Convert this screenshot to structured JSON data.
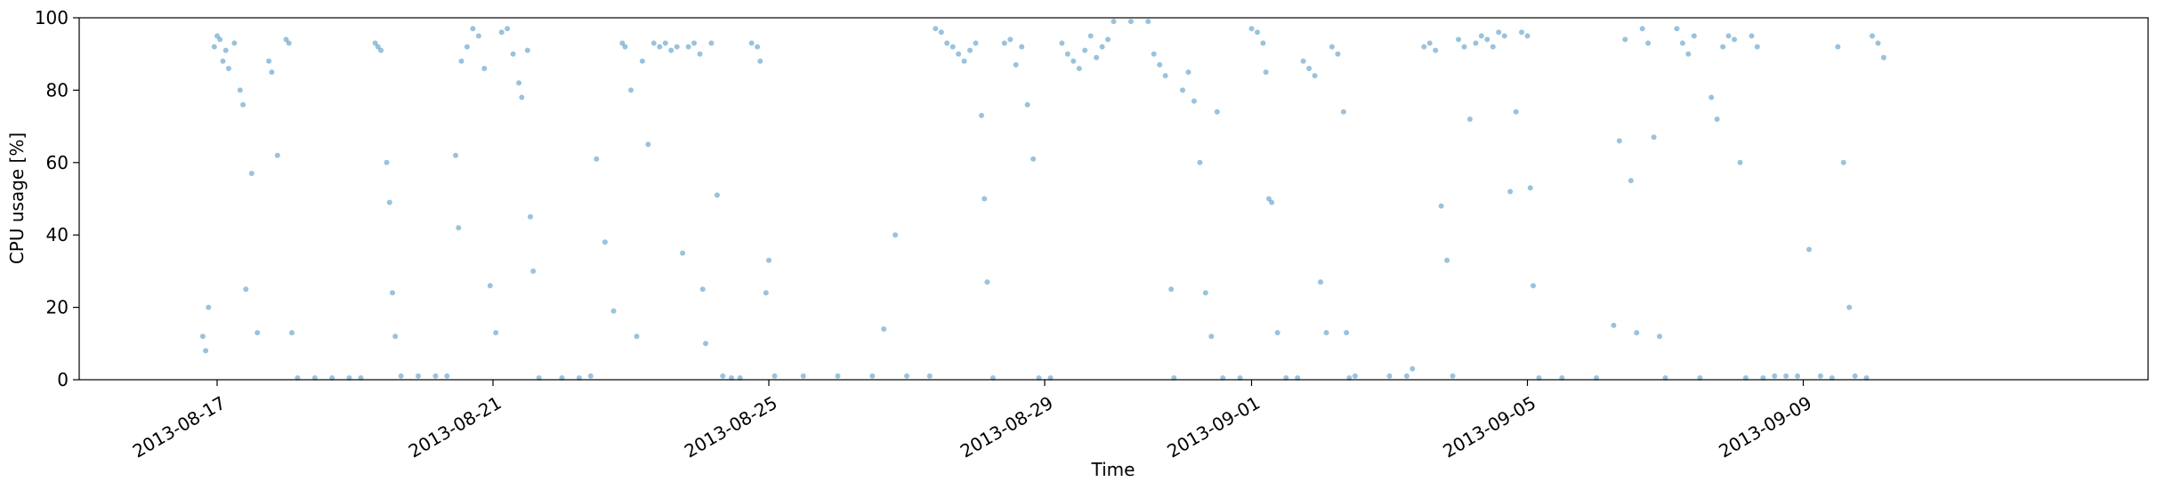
{
  "chart_data": {
    "type": "scatter",
    "xlabel": "Time",
    "ylabel": "CPU usage [%]",
    "ylim": [
      0,
      100
    ],
    "yticks": [
      0,
      20,
      40,
      60,
      80,
      100
    ],
    "xlim": [
      "2013-08-15",
      "2013-09-14"
    ],
    "xticks": [
      "2013-08-17",
      "2013-08-21",
      "2013-08-25",
      "2013-08-29",
      "2013-09-01",
      "2013-09-05",
      "2013-09-09"
    ],
    "grid": false,
    "marker_color": "#1f77b4",
    "marker_alpha": 0.45,
    "series": [
      {
        "values_description_free": true,
        "points": [
          [
            "2013-08-16T19:00",
            12
          ],
          [
            "2013-08-16T20:00",
            8
          ],
          [
            "2013-08-16T21:00",
            20
          ],
          [
            "2013-08-16T23:00",
            92
          ],
          [
            "2013-08-17T00:00",
            95
          ],
          [
            "2013-08-17T01:00",
            94
          ],
          [
            "2013-08-17T02:00",
            88
          ],
          [
            "2013-08-17T03:00",
            91
          ],
          [
            "2013-08-17T04:00",
            86
          ],
          [
            "2013-08-17T06:00",
            93
          ],
          [
            "2013-08-17T08:00",
            80
          ],
          [
            "2013-08-17T09:00",
            76
          ],
          [
            "2013-08-17T10:00",
            25
          ],
          [
            "2013-08-17T12:00",
            57
          ],
          [
            "2013-08-17T14:00",
            13
          ],
          [
            "2013-08-17T18:00",
            88
          ],
          [
            "2013-08-17T19:00",
            85
          ],
          [
            "2013-08-17T21:00",
            62
          ],
          [
            "2013-08-18T00:00",
            94
          ],
          [
            "2013-08-18T01:00",
            93
          ],
          [
            "2013-08-18T02:00",
            13
          ],
          [
            "2013-08-18T04:00",
            0.5
          ],
          [
            "2013-08-18T10:00",
            0.5
          ],
          [
            "2013-08-18T16:00",
            0.5
          ],
          [
            "2013-08-18T22:00",
            0.5
          ],
          [
            "2013-08-19T02:00",
            0.5
          ],
          [
            "2013-08-19T07:00",
            93
          ],
          [
            "2013-08-19T08:00",
            92
          ],
          [
            "2013-08-19T09:00",
            91
          ],
          [
            "2013-08-19T11:00",
            60
          ],
          [
            "2013-08-19T12:00",
            49
          ],
          [
            "2013-08-19T13:00",
            24
          ],
          [
            "2013-08-19T14:00",
            12
          ],
          [
            "2013-08-19T16:00",
            1
          ],
          [
            "2013-08-19T22:00",
            1
          ],
          [
            "2013-08-20T04:00",
            1
          ],
          [
            "2013-08-20T08:00",
            1
          ],
          [
            "2013-08-20T11:00",
            62
          ],
          [
            "2013-08-20T12:00",
            42
          ],
          [
            "2013-08-20T13:00",
            88
          ],
          [
            "2013-08-20T15:00",
            92
          ],
          [
            "2013-08-20T17:00",
            97
          ],
          [
            "2013-08-20T19:00",
            95
          ],
          [
            "2013-08-20T21:00",
            86
          ],
          [
            "2013-08-20T23:00",
            26
          ],
          [
            "2013-08-21T01:00",
            13
          ],
          [
            "2013-08-21T03:00",
            96
          ],
          [
            "2013-08-21T05:00",
            97
          ],
          [
            "2013-08-21T07:00",
            90
          ],
          [
            "2013-08-21T09:00",
            82
          ],
          [
            "2013-08-21T10:00",
            78
          ],
          [
            "2013-08-21T12:00",
            91
          ],
          [
            "2013-08-21T13:00",
            45
          ],
          [
            "2013-08-21T14:00",
            30
          ],
          [
            "2013-08-21T16:00",
            0.5
          ],
          [
            "2013-08-22T00:00",
            0.5
          ],
          [
            "2013-08-22T06:00",
            0.5
          ],
          [
            "2013-08-22T10:00",
            1
          ],
          [
            "2013-08-22T12:00",
            61
          ],
          [
            "2013-08-22T15:00",
            38
          ],
          [
            "2013-08-22T18:00",
            19
          ],
          [
            "2013-08-22T21:00",
            93
          ],
          [
            "2013-08-22T22:00",
            92
          ],
          [
            "2013-08-23T00:00",
            80
          ],
          [
            "2013-08-23T02:00",
            12
          ],
          [
            "2013-08-23T04:00",
            88
          ],
          [
            "2013-08-23T06:00",
            65
          ],
          [
            "2013-08-23T08:00",
            93
          ],
          [
            "2013-08-23T10:00",
            92
          ],
          [
            "2013-08-23T12:00",
            93
          ],
          [
            "2013-08-23T14:00",
            91
          ],
          [
            "2013-08-23T16:00",
            92
          ],
          [
            "2013-08-23T18:00",
            35
          ],
          [
            "2013-08-23T20:00",
            92
          ],
          [
            "2013-08-23T22:00",
            93
          ],
          [
            "2013-08-24T00:00",
            90
          ],
          [
            "2013-08-24T01:00",
            25
          ],
          [
            "2013-08-24T02:00",
            10
          ],
          [
            "2013-08-24T04:00",
            93
          ],
          [
            "2013-08-24T06:00",
            51
          ],
          [
            "2013-08-24T08:00",
            1
          ],
          [
            "2013-08-24T11:00",
            0.5
          ],
          [
            "2013-08-24T14:00",
            0.5
          ],
          [
            "2013-08-24T18:00",
            93
          ],
          [
            "2013-08-24T20:00",
            92
          ],
          [
            "2013-08-24T21:00",
            88
          ],
          [
            "2013-08-24T23:00",
            24
          ],
          [
            "2013-08-25T00:00",
            33
          ],
          [
            "2013-08-25T02:00",
            1
          ],
          [
            "2013-08-25T12:00",
            1
          ],
          [
            "2013-08-26T00:00",
            1
          ],
          [
            "2013-08-26T12:00",
            1
          ],
          [
            "2013-08-27T00:00",
            1
          ],
          [
            "2013-08-27T08:00",
            1
          ],
          [
            "2013-08-26T16:00",
            14
          ],
          [
            "2013-08-26T20:00",
            40
          ],
          [
            "2013-08-27T10:00",
            97
          ],
          [
            "2013-08-27T12:00",
            96
          ],
          [
            "2013-08-27T14:00",
            93
          ],
          [
            "2013-08-27T16:00",
            92
          ],
          [
            "2013-08-27T18:00",
            90
          ],
          [
            "2013-08-27T20:00",
            88
          ],
          [
            "2013-08-27T22:00",
            91
          ],
          [
            "2013-08-28T00:00",
            93
          ],
          [
            "2013-08-28T02:00",
            73
          ],
          [
            "2013-08-28T03:00",
            50
          ],
          [
            "2013-08-28T04:00",
            27
          ],
          [
            "2013-08-28T06:00",
            0.5
          ],
          [
            "2013-08-28T10:00",
            93
          ],
          [
            "2013-08-28T12:00",
            94
          ],
          [
            "2013-08-28T14:00",
            87
          ],
          [
            "2013-08-28T16:00",
            92
          ],
          [
            "2013-08-28T18:00",
            76
          ],
          [
            "2013-08-28T20:00",
            61
          ],
          [
            "2013-08-28T22:00",
            0.5
          ],
          [
            "2013-08-29T02:00",
            0.5
          ],
          [
            "2013-08-29T06:00",
            93
          ],
          [
            "2013-08-29T08:00",
            90
          ],
          [
            "2013-08-29T10:00",
            88
          ],
          [
            "2013-08-29T12:00",
            86
          ],
          [
            "2013-08-29T14:00",
            91
          ],
          [
            "2013-08-29T16:00",
            95
          ],
          [
            "2013-08-29T18:00",
            89
          ],
          [
            "2013-08-29T20:00",
            92
          ],
          [
            "2013-08-29T22:00",
            94
          ],
          [
            "2013-08-30T00:00",
            99
          ],
          [
            "2013-08-30T06:00",
            99
          ],
          [
            "2013-08-30T12:00",
            99
          ],
          [
            "2013-08-30T14:00",
            90
          ],
          [
            "2013-08-30T16:00",
            87
          ],
          [
            "2013-08-30T18:00",
            84
          ],
          [
            "2013-08-30T20:00",
            25
          ],
          [
            "2013-08-30T21:00",
            0.5
          ],
          [
            "2013-08-31T00:00",
            80
          ],
          [
            "2013-08-31T02:00",
            85
          ],
          [
            "2013-08-31T04:00",
            77
          ],
          [
            "2013-08-31T06:00",
            60
          ],
          [
            "2013-08-31T08:00",
            24
          ],
          [
            "2013-08-31T10:00",
            12
          ],
          [
            "2013-08-31T12:00",
            74
          ],
          [
            "2013-08-31T14:00",
            0.5
          ],
          [
            "2013-08-31T20:00",
            0.5
          ],
          [
            "2013-09-01T00:00",
            97
          ],
          [
            "2013-09-01T02:00",
            96
          ],
          [
            "2013-09-01T04:00",
            93
          ],
          [
            "2013-09-01T05:00",
            85
          ],
          [
            "2013-09-01T06:00",
            50
          ],
          [
            "2013-09-01T07:00",
            49
          ],
          [
            "2013-09-01T09:00",
            13
          ],
          [
            "2013-09-01T12:00",
            0.5
          ],
          [
            "2013-09-01T16:00",
            0.5
          ],
          [
            "2013-09-01T18:00",
            88
          ],
          [
            "2013-09-01T20:00",
            86
          ],
          [
            "2013-09-01T22:00",
            84
          ],
          [
            "2013-09-02T00:00",
            27
          ],
          [
            "2013-09-02T02:00",
            13
          ],
          [
            "2013-09-02T04:00",
            92
          ],
          [
            "2013-09-02T06:00",
            90
          ],
          [
            "2013-09-02T08:00",
            74
          ],
          [
            "2013-09-02T09:00",
            13
          ],
          [
            "2013-09-02T10:00",
            0.5
          ],
          [
            "2013-09-02T12:00",
            1
          ],
          [
            "2013-09-03T00:00",
            1
          ],
          [
            "2013-09-03T06:00",
            1
          ],
          [
            "2013-09-03T08:00",
            3
          ],
          [
            "2013-09-03T12:00",
            92
          ],
          [
            "2013-09-03T14:00",
            93
          ],
          [
            "2013-09-03T16:00",
            91
          ],
          [
            "2013-09-03T18:00",
            48
          ],
          [
            "2013-09-03T20:00",
            33
          ],
          [
            "2013-09-03T22:00",
            1
          ],
          [
            "2013-09-04T00:00",
            94
          ],
          [
            "2013-09-04T02:00",
            92
          ],
          [
            "2013-09-04T04:00",
            72
          ],
          [
            "2013-09-04T06:00",
            93
          ],
          [
            "2013-09-04T08:00",
            95
          ],
          [
            "2013-09-04T10:00",
            94
          ],
          [
            "2013-09-04T12:00",
            92
          ],
          [
            "2013-09-04T14:00",
            96
          ],
          [
            "2013-09-04T16:00",
            95
          ],
          [
            "2013-09-04T18:00",
            52
          ],
          [
            "2013-09-04T20:00",
            74
          ],
          [
            "2013-09-04T22:00",
            96
          ],
          [
            "2013-09-05T00:00",
            95
          ],
          [
            "2013-09-05T01:00",
            53
          ],
          [
            "2013-09-05T02:00",
            26
          ],
          [
            "2013-09-05T04:00",
            0.5
          ],
          [
            "2013-09-05T12:00",
            0.5
          ],
          [
            "2013-09-06T00:00",
            0.5
          ],
          [
            "2013-09-06T06:00",
            15
          ],
          [
            "2013-09-06T08:00",
            66
          ],
          [
            "2013-09-06T10:00",
            94
          ],
          [
            "2013-09-06T12:00",
            55
          ],
          [
            "2013-09-06T14:00",
            13
          ],
          [
            "2013-09-06T16:00",
            97
          ],
          [
            "2013-09-06T18:00",
            93
          ],
          [
            "2013-09-06T20:00",
            67
          ],
          [
            "2013-09-06T22:00",
            12
          ],
          [
            "2013-09-07T00:00",
            0.5
          ],
          [
            "2013-09-07T04:00",
            97
          ],
          [
            "2013-09-07T06:00",
            93
          ],
          [
            "2013-09-07T08:00",
            90
          ],
          [
            "2013-09-07T10:00",
            95
          ],
          [
            "2013-09-07T12:00",
            0.5
          ],
          [
            "2013-09-07T16:00",
            78
          ],
          [
            "2013-09-07T18:00",
            72
          ],
          [
            "2013-09-07T20:00",
            92
          ],
          [
            "2013-09-07T22:00",
            95
          ],
          [
            "2013-09-08T00:00",
            94
          ],
          [
            "2013-09-08T02:00",
            60
          ],
          [
            "2013-09-08T04:00",
            0.5
          ],
          [
            "2013-09-08T06:00",
            95
          ],
          [
            "2013-09-08T08:00",
            92
          ],
          [
            "2013-09-08T10:00",
            0.5
          ],
          [
            "2013-09-08T14:00",
            1
          ],
          [
            "2013-09-08T18:00",
            1
          ],
          [
            "2013-09-08T22:00",
            1
          ],
          [
            "2013-09-09T02:00",
            36
          ],
          [
            "2013-09-09T06:00",
            1
          ],
          [
            "2013-09-09T10:00",
            0.5
          ],
          [
            "2013-09-09T12:00",
            92
          ],
          [
            "2013-09-09T14:00",
            60
          ],
          [
            "2013-09-09T16:00",
            20
          ],
          [
            "2013-09-09T18:00",
            1
          ],
          [
            "2013-09-09T22:00",
            0.5
          ],
          [
            "2013-09-10T00:00",
            95
          ],
          [
            "2013-09-10T02:00",
            93
          ],
          [
            "2013-09-10T04:00",
            89
          ]
        ]
      }
    ]
  }
}
